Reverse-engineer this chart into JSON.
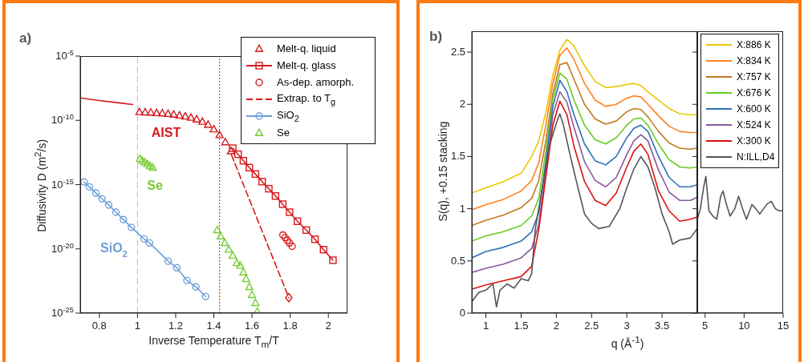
{
  "chart_data": [
    {
      "type": "line",
      "title": "a)",
      "xlabel": "Inverse Temperature T$_{m}$/T",
      "ylabel": "Diffusivity D (m$^{2}$/s)",
      "log": "y",
      "xlim": [
        0.7,
        2.1
      ],
      "xticks": [
        0.8,
        1,
        1.2,
        1.4,
        1.6,
        1.8,
        2
      ],
      "ylim": [
        1e-25,
        1e-05
      ],
      "yticks": [
        {
          "value": 1e-25,
          "label": "10$^{-25}$"
        },
        {
          "value": 1e-20,
          "label": "10$^{-20}$"
        },
        {
          "value": 1e-15,
          "label": "10$^{-15}$"
        },
        {
          "value": 1e-10,
          "label": "10$^{-10}$"
        },
        {
          "value": 1e-05,
          "label": "10$^{-5}$"
        }
      ],
      "legend": "top right",
      "series": [
        {
          "name": "Melt-q. liquid",
          "type": "scatter",
          "marker": "triangle",
          "color": "#d7191c",
          "x": [
            1.01,
            1.04,
            1.07,
            1.1,
            1.13,
            1.16,
            1.19,
            1.22,
            1.25,
            1.28,
            1.31,
            1.34,
            1.37,
            1.4,
            1.43,
            1.46,
            1.49
          ],
          "values": [
            4.4e-10,
            4.2e-10,
            4e-10,
            3.7e-10,
            3.5e-10,
            3.2e-10,
            2.8e-10,
            2.4e-10,
            2e-10,
            1.6e-10,
            1.2e-10,
            7.9e-11,
            4.5e-11,
            2e-11,
            7.1e-12,
            2e-12,
            4e-13
          ]
        },
        {
          "name": "Melt-q. glass",
          "marker": "square",
          "color": "#d7191c",
          "x": [
            1.499,
            1.527,
            1.555,
            1.586,
            1.618,
            1.653,
            1.688,
            1.723,
            1.761,
            1.797,
            1.838,
            1.884,
            1.93,
            1.975,
            2.024
          ],
          "values": [
            6.8e-13,
            2.3e-13,
            7.2e-14,
            2.1e-14,
            6.6e-15,
            1.7e-15,
            4.8e-16,
            1.3e-16,
            3e-17,
            7.1e-18,
            1.4e-18,
            2.9e-19,
            5.6e-20,
            8.7e-21,
            1.3e-21
          ]
        },
        {
          "name": "As-dep. amorph.",
          "type": "scatter",
          "marker": "circle",
          "color": "#d7191c",
          "x": [
            1.762,
            1.773,
            1.785,
            1.796,
            1.81
          ],
          "values": [
            1.2e-19,
            7.6e-20,
            4.7e-20,
            2.9e-20,
            1.6e-20
          ]
        },
        {
          "name": "Extrap. to T$_{g}$",
          "line_style": "dashed",
          "color": "#d7191c",
          "x": [
            1.492,
            1.793
          ],
          "values": [
            2.1e-13,
            1.6e-24
          ]
        },
        {
          "name": "SiO$_{2}$",
          "marker": "circle",
          "color": "#6f9fd8",
          "x": [
            0.72,
            0.748,
            0.782,
            0.814,
            0.849,
            0.887,
            0.926,
            0.968,
            1.034,
            1.063,
            1.161,
            1.206,
            1.259,
            1.306,
            1.357
          ],
          "values": [
            1.6e-15,
            6.6e-16,
            2.2e-16,
            7.8e-17,
            2.6e-17,
            7.1e-18,
            1.9e-18,
            4.7e-19,
            5.9e-20,
            2.9e-20,
            1.1e-21,
            3.4e-22,
            3.5e-23,
            1.1e-23,
            2e-24
          ]
        },
        {
          "name": "Se",
          "type": "scatter",
          "marker": "triangle",
          "color": "#77cc33",
          "x": [
            1.013,
            1.024,
            1.038,
            1.052,
            1.066,
            1.08,
            1.418,
            1.436,
            1.457,
            1.478,
            1.499,
            1.52,
            1.538,
            1.555,
            1.569,
            1.586,
            1.6,
            1.618,
            1.628
          ],
          "values": [
            1e-13,
            7.2e-14,
            5.4e-14,
            3.9e-14,
            2.8e-14,
            2.1e-14,
            2.9e-19,
            9.5e-20,
            2.9e-20,
            8.7e-21,
            3e-21,
            7.9e-22,
            5e-22,
            1.5e-22,
            4.6e-23,
            1.1e-23,
            2.6e-24,
            6.2e-25,
            1.3e-25
          ]
        },
        {
          "color": "#d7191c",
          "x": [
            0.7,
            0.8,
            0.9,
            0.975
          ],
          "values": [
            5.5e-09,
            3.5e-09,
            2.3e-09,
            1.7e-09
          ]
        },
        {
          "type": "scatter",
          "marker": "diamond",
          "color": "#d7191c",
          "x": [
            1.793
          ],
          "values": [
            1.6e-24
          ]
        }
      ],
      "ref_lines": [
        {
          "axis": "x",
          "value": 1,
          "color": "#bbbbbb",
          "line_style": "dashed"
        },
        {
          "axis": "x",
          "value": 1.43,
          "color": "#d7191c",
          "line_style": "dotted"
        }
      ],
      "annotations": [
        "AIST",
        "Se",
        "SiO$_{2}$"
      ]
    },
    {
      "type": "line",
      "title": "b)",
      "xlabel": "q (Å$^{-1}$)",
      "ylabel": "S(q), +0.15 stacking",
      "xlim": [
        0.8,
        4
      ],
      "xticks": [
        1,
        1.5,
        2,
        2.5,
        3,
        3.5
      ],
      "ylim": [
        0,
        2.7
      ],
      "yticks": [
        0,
        0.5,
        1,
        1.5,
        2,
        2.5
      ],
      "legend": "top right",
      "x": [
        0.8,
        1.0,
        1.25,
        1.5,
        1.65,
        1.75,
        1.85,
        1.95,
        2.05,
        2.15,
        2.25,
        2.4,
        2.55,
        2.7,
        2.85,
        3.0,
        3.1,
        3.2,
        3.3,
        3.45,
        3.6,
        3.75,
        3.9,
        4.0
      ],
      "series": [
        {
          "name": "X:886 K",
          "color": "#e8c800",
          "values": [
            1.15,
            1.2,
            1.26,
            1.34,
            1.5,
            1.65,
            1.92,
            2.28,
            2.52,
            2.62,
            2.56,
            2.37,
            2.22,
            2.16,
            2.17,
            2.19,
            2.2,
            2.18,
            2.12,
            2.04,
            1.96,
            1.91,
            1.9,
            1.9
          ]
        },
        {
          "name": "X:834 K",
          "color": "#ff8020",
          "values": [
            0.99,
            1.04,
            1.09,
            1.17,
            1.27,
            1.44,
            1.8,
            2.2,
            2.47,
            2.54,
            2.43,
            2.2,
            2.04,
            1.98,
            2.0,
            2.06,
            2.08,
            2.07,
            2.0,
            1.89,
            1.79,
            1.74,
            1.73,
            1.73
          ]
        },
        {
          "name": "X:757 K",
          "color": "#c07a20",
          "values": [
            0.84,
            0.89,
            0.94,
            1.01,
            1.1,
            1.27,
            1.65,
            2.1,
            2.38,
            2.4,
            2.24,
            2.0,
            1.86,
            1.81,
            1.84,
            1.93,
            1.96,
            1.95,
            1.88,
            1.74,
            1.63,
            1.58,
            1.57,
            1.58
          ]
        },
        {
          "name": "X:676 K",
          "color": "#66cc22",
          "values": [
            0.69,
            0.74,
            0.78,
            0.84,
            0.93,
            1.1,
            1.55,
            2.05,
            2.3,
            2.24,
            2.04,
            1.8,
            1.66,
            1.62,
            1.68,
            1.8,
            1.86,
            1.87,
            1.8,
            1.62,
            1.47,
            1.4,
            1.39,
            1.4
          ]
        },
        {
          "name": "X:600 K",
          "color": "#2f6fb8",
          "values": [
            0.53,
            0.59,
            0.63,
            0.69,
            0.78,
            0.96,
            1.45,
            1.98,
            2.23,
            2.12,
            1.9,
            1.62,
            1.46,
            1.42,
            1.5,
            1.68,
            1.77,
            1.8,
            1.74,
            1.5,
            1.3,
            1.21,
            1.21,
            1.23
          ]
        },
        {
          "name": "X:524 K",
          "color": "#8a5a9a",
          "values": [
            0.39,
            0.43,
            0.47,
            0.53,
            0.62,
            0.85,
            1.35,
            1.9,
            2.12,
            2.02,
            1.78,
            1.45,
            1.27,
            1.21,
            1.3,
            1.52,
            1.65,
            1.71,
            1.65,
            1.37,
            1.16,
            1.08,
            1.08,
            1.11
          ]
        },
        {
          "name": "X:300 K",
          "color": "#dd1111",
          "values": [
            0.23,
            0.27,
            0.31,
            0.35,
            0.45,
            0.8,
            1.3,
            1.8,
            2.03,
            1.9,
            1.6,
            1.26,
            1.08,
            1.03,
            1.15,
            1.4,
            1.55,
            1.62,
            1.52,
            1.17,
            0.98,
            0.88,
            0.9,
            0.92
          ]
        },
        {
          "name": "N:ILL,D4",
          "color": "#555555",
          "x": [
            0.8,
            0.9,
            1.0,
            1.1,
            1.15,
            1.2,
            1.3,
            1.4,
            1.5,
            1.6,
            1.65,
            1.7,
            1.8,
            1.9,
            2.0,
            2.05,
            2.1,
            2.2,
            2.3,
            2.4,
            2.5,
            2.6,
            2.75,
            2.9,
            3.0,
            3.1,
            3.2,
            3.3,
            3.4,
            3.5,
            3.6,
            3.65,
            3.75,
            3.9,
            4.0
          ],
          "values": [
            0.11,
            0.2,
            0.22,
            0.28,
            0.06,
            0.22,
            0.28,
            0.24,
            0.33,
            0.31,
            0.38,
            0.8,
            1.2,
            1.6,
            1.82,
            1.91,
            1.8,
            1.5,
            1.22,
            0.95,
            0.86,
            0.81,
            0.83,
            1.0,
            1.2,
            1.38,
            1.5,
            1.4,
            1.2,
            0.95,
            0.78,
            0.66,
            0.7,
            0.72,
            0.81
          ]
        }
      ]
    },
    {
      "type": "line",
      "xlim": [
        4,
        15
      ],
      "xticks": [
        5,
        10,
        15
      ],
      "ylim": [
        0,
        2.7
      ],
      "yticks": [
        0,
        0.5,
        1,
        1.5,
        2,
        2.5
      ],
      "tick_labels": "x",
      "series": [
        {
          "color": "#555555",
          "x": [
            4.0,
            4.4,
            4.8,
            5.1,
            5.5,
            6.0,
            6.5,
            7.0,
            7.3,
            7.7,
            8.2,
            8.8,
            9.3,
            9.8,
            10.3,
            11,
            11.5,
            12,
            12.5,
            13,
            13.5,
            14,
            14.5,
            15
          ],
          "values": [
            0.9,
            1.0,
            1.2,
            1.31,
            0.98,
            0.93,
            0.9,
            1.12,
            1.17,
            1.05,
            0.93,
            1.0,
            1.12,
            1.0,
            0.9,
            1.04,
            1.0,
            0.95,
            1.0,
            1.05,
            1.07,
            1.0,
            0.98,
            0.98
          ]
        }
      ]
    }
  ]
}
